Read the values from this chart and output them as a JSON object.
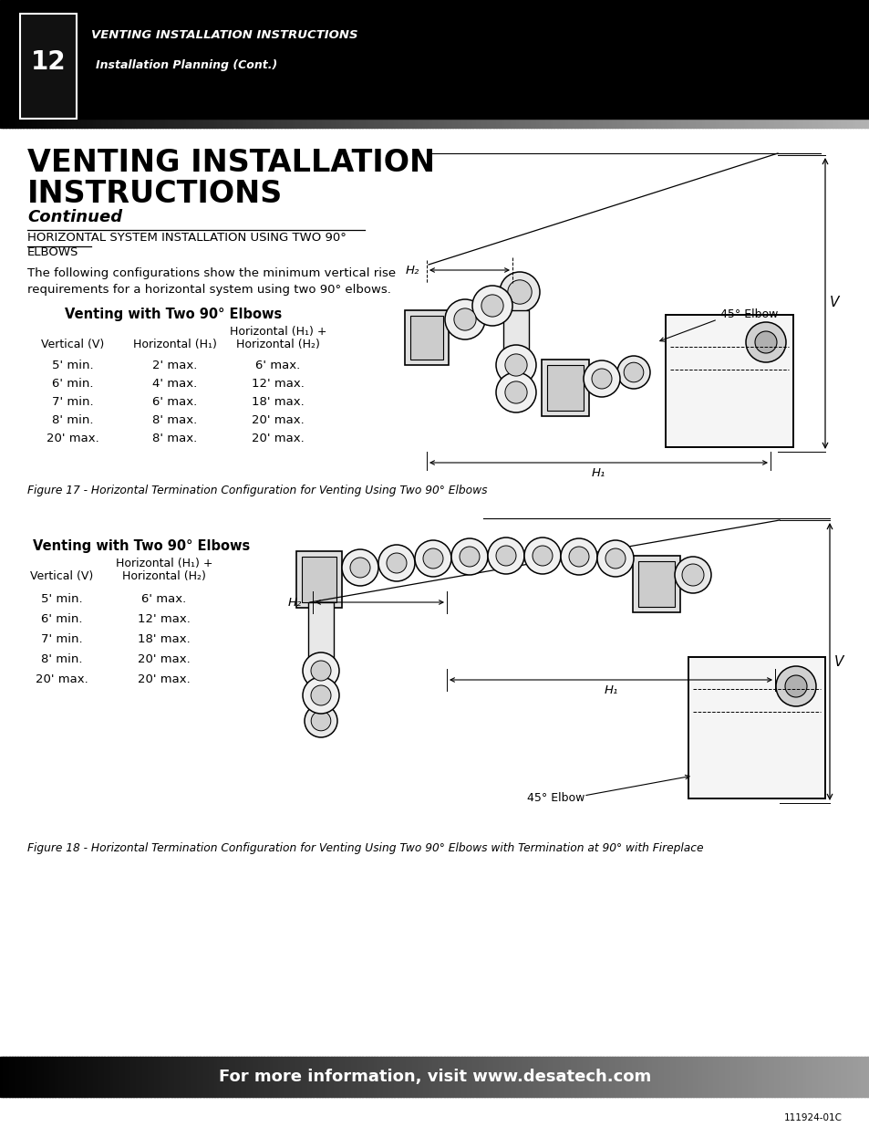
{
  "page_num": "12",
  "header_title": "VENTING INSTALLATION INSTRUCTIONS",
  "header_subtitle": "Installation Planning (Cont.)",
  "main_title_line1": "VENTING INSTALLATION",
  "main_title_line2": "INSTRUCTIONS",
  "main_subtitle": "Continued",
  "section_heading_line1": "HORIZONTAL SYSTEM INSTALLATION USING TWO 90°",
  "section_heading_line2": "ELBOWS",
  "body_text_line1": "The following configurations show the minimum vertical rise",
  "body_text_line2": "requirements for a horizontal system using two 90° elbows.",
  "table1_title": "Venting with Two 90° Elbows",
  "table1_col1": "Vertical (V)",
  "table1_col2": "Horizontal (H₁)",
  "table1_col3_l1": "Horizontal (H₁) +",
  "table1_col3_l2": "Horizontal (H₂)",
  "table1_rows": [
    [
      "5' min.",
      "2' max.",
      "6' max."
    ],
    [
      "6' min.",
      "4' max.",
      "12' max."
    ],
    [
      "7' min.",
      "6' max.",
      "18' max."
    ],
    [
      "8' min.",
      "8' max.",
      "20' max."
    ],
    [
      "20' max.",
      "8' max.",
      "20' max."
    ]
  ],
  "fig1_caption": "Figure 17 - Horizontal Termination Configuration for Venting Using Two 90° Elbows",
  "table2_title": "Venting with Two 90° Elbows",
  "table2_col1": "Vertical (V)",
  "table2_col2_l1": "Horizontal (H₁) +",
  "table2_col2_l2": "Horizontal (H₂)",
  "table2_rows": [
    [
      "5' min.",
      "6' max."
    ],
    [
      "6' min.",
      "12' max."
    ],
    [
      "7' min.",
      "18' max."
    ],
    [
      "8' min.",
      "20' max."
    ],
    [
      "20' max.",
      "20' max."
    ]
  ],
  "fig2_caption": "Figure 18 - Horizontal Termination Configuration for Venting Using Two 90° Elbows with Termination at 90° with Fireplace",
  "footer_text": "For more information, visit www.desatech.com",
  "doc_num": "111924-01C",
  "bg_color": "#ffffff"
}
